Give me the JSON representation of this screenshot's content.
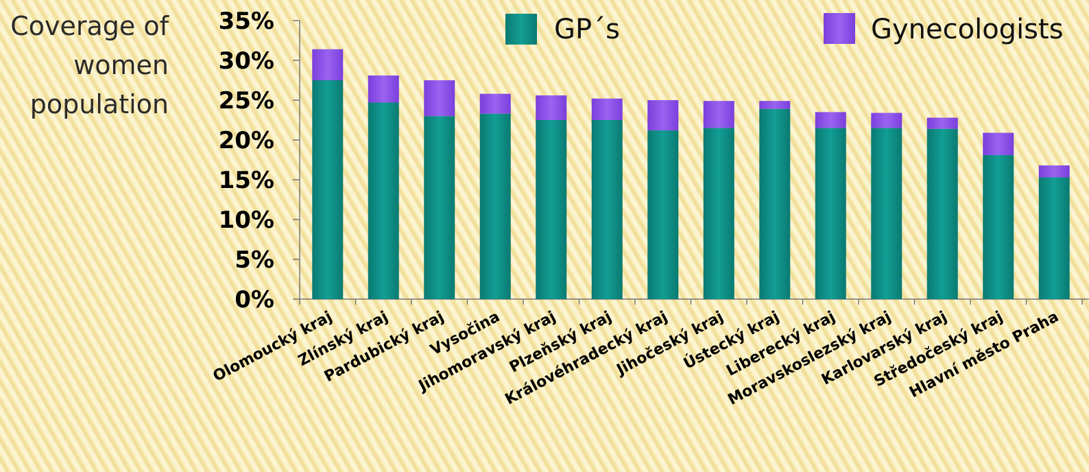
{
  "chart_data": {
    "type": "bar",
    "stacked": true,
    "ylabel_lines": [
      "Coverage of",
      "women",
      "population"
    ],
    "ylim": [
      0,
      35
    ],
    "yticks": [
      "0%",
      "5%",
      "10%",
      "15%",
      "20%",
      "25%",
      "30%",
      "35%"
    ],
    "categories": [
      "Olomoucký kraj",
      "Zlínský kraj",
      "Pardubický kraj",
      "Vysočina",
      "Jihomoravský kraj",
      "Plzeňský kraj",
      "Královéhradecký kraj",
      "Jihočeský kraj",
      "Ústecký kraj",
      "Liberecký kraj",
      "Moravskoslezský kraj",
      "Karlovarský kraj",
      "Středočeský kraj",
      "Hlavní město Praha"
    ],
    "series": [
      {
        "name": "GP´s",
        "color": "#0f8f86",
        "values": [
          27.5,
          24.7,
          23.0,
          23.3,
          22.5,
          22.5,
          21.2,
          21.5,
          23.9,
          21.5,
          21.5,
          21.4,
          18.1,
          15.3
        ]
      },
      {
        "name": "Gynecologists",
        "color": "#8b4ee6",
        "values": [
          3.9,
          3.4,
          4.5,
          2.5,
          3.1,
          2.7,
          3.8,
          3.4,
          1.0,
          2.0,
          1.9,
          1.4,
          2.8,
          1.5
        ]
      }
    ],
    "grid": false,
    "legend_position": "top"
  }
}
